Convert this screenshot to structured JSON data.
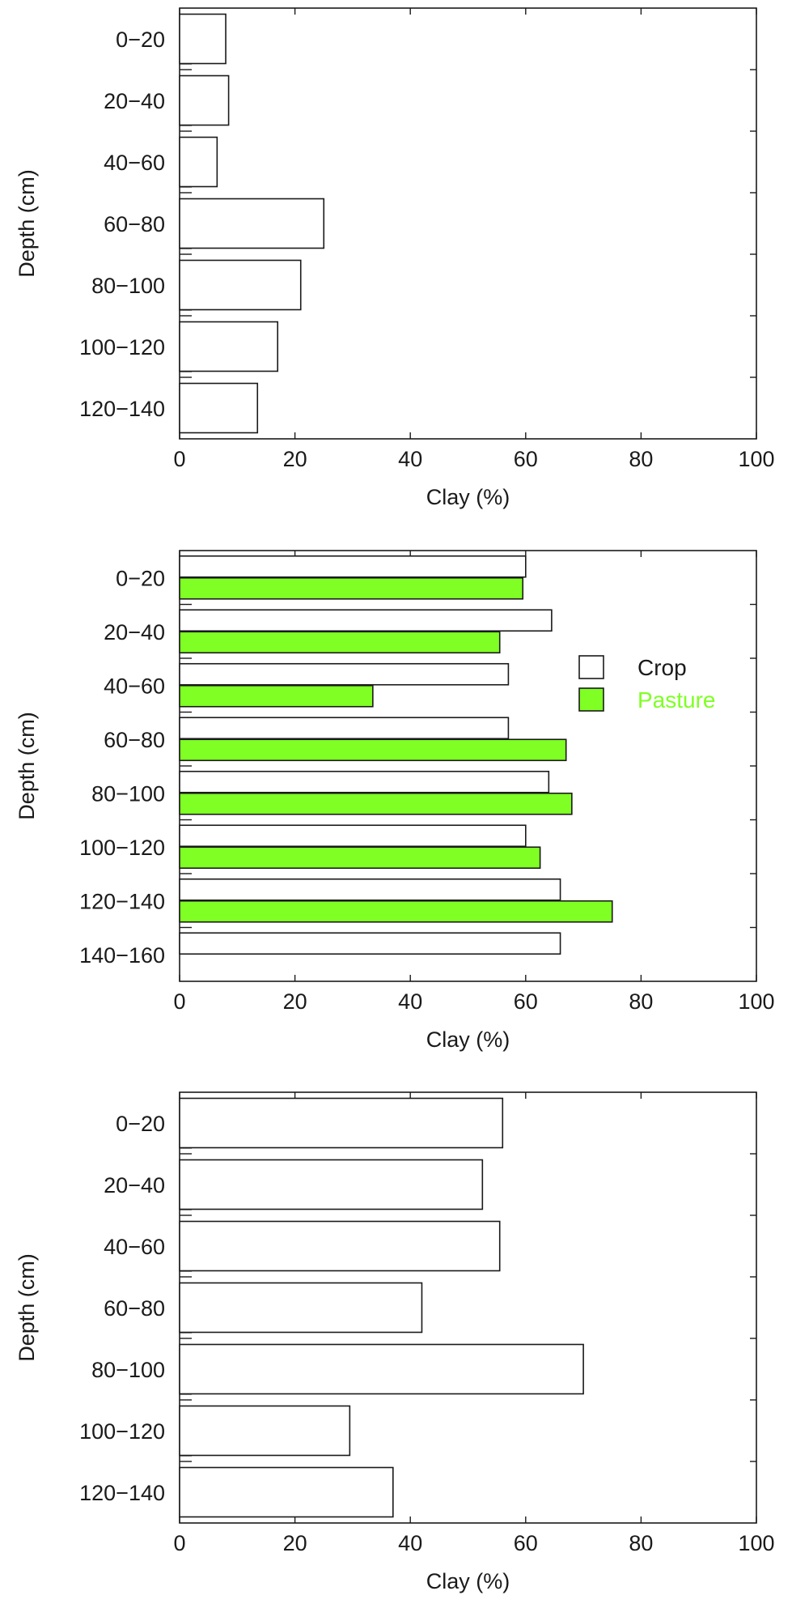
{
  "chart_data": [
    {
      "type": "bar",
      "orientation": "horizontal",
      "categories": [
        "0−20",
        "20−40",
        "40−60",
        "60−80",
        "80−100",
        "100−120",
        "120−140"
      ],
      "series": [
        {
          "values": [
            8,
            8.5,
            6.5,
            25,
            21,
            17,
            13.5
          ],
          "color": "#ffffff"
        }
      ],
      "xlabel": "Clay (%)",
      "ylabel": "Depth (cm)",
      "xlim": [
        0,
        100
      ],
      "xticks": [
        "0",
        "20",
        "40",
        "60",
        "80",
        "100"
      ],
      "grid": false
    },
    {
      "type": "bar",
      "orientation": "horizontal",
      "categories": [
        "0−20",
        "20−40",
        "40−60",
        "60−80",
        "80−100",
        "100−120",
        "120−140",
        "140−160"
      ],
      "series": [
        {
          "name": "Crop",
          "values": [
            60,
            64.5,
            57,
            57,
            64,
            60,
            66,
            66
          ],
          "color": "#ffffff"
        },
        {
          "name": "Pasture",
          "values": [
            59.5,
            55.5,
            33.5,
            67,
            68,
            62.5,
            75,
            null
          ],
          "color": "#7fff24"
        }
      ],
      "xlabel": "Clay (%)",
      "ylabel": "Depth (cm)",
      "xlim": [
        0,
        100
      ],
      "xticks": [
        "0",
        "20",
        "40",
        "60",
        "80",
        "100"
      ],
      "legend_position": "right",
      "legend_text_colors": [
        "#1a1a1a",
        "#7fff24"
      ],
      "grid": false
    },
    {
      "type": "bar",
      "orientation": "horizontal",
      "categories": [
        "0−20",
        "20−40",
        "40−60",
        "60−80",
        "80−100",
        "100−120",
        "120−140"
      ],
      "series": [
        {
          "values": [
            56,
            52.5,
            55.5,
            42,
            70,
            29.5,
            37
          ],
          "color": "#ffffff"
        }
      ],
      "xlabel": "Clay (%)",
      "ylabel": "Depth (cm)",
      "xlim": [
        0,
        100
      ],
      "xticks": [
        "0",
        "20",
        "40",
        "60",
        "80",
        "100"
      ],
      "grid": false
    }
  ]
}
